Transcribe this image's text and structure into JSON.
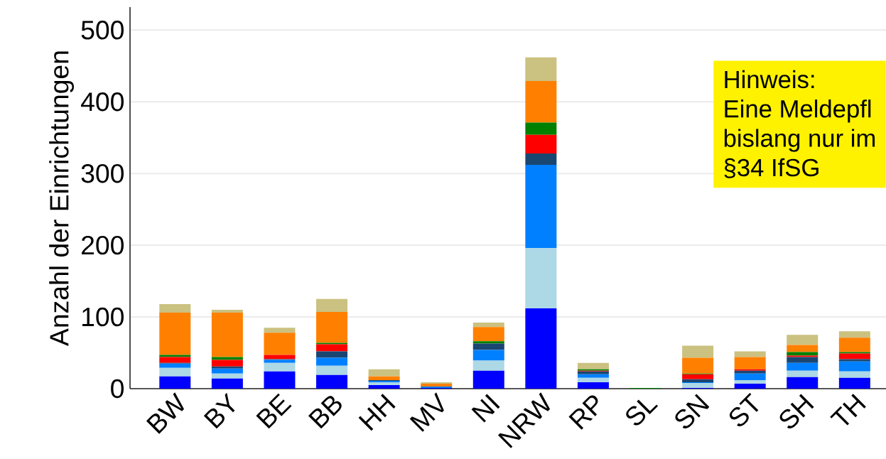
{
  "chart_data": {
    "type": "bar",
    "stacked": true,
    "ylabel": "Anzahl der Einrichtungen",
    "categories": [
      "BW",
      "BY",
      "BE",
      "BB",
      "HH",
      "MV",
      "NI",
      "NRW",
      "RP",
      "SL",
      "SN",
      "ST",
      "SH",
      "TH"
    ],
    "series": [
      {
        "color": "#0000ff",
        "values": [
          17,
          14,
          24,
          19,
          5,
          1,
          25,
          112,
          9,
          0,
          1,
          7,
          16,
          15
        ]
      },
      {
        "color": "#add8e6",
        "values": [
          12,
          7,
          12,
          13,
          4,
          0,
          14,
          84,
          6,
          0,
          7,
          5,
          9,
          9
        ]
      },
      {
        "color": "#0080ff",
        "values": [
          6,
          7,
          4,
          11,
          2,
          2,
          15,
          116,
          5,
          0,
          1,
          9,
          11,
          14
        ]
      },
      {
        "color": "#1a4672",
        "values": [
          1,
          3,
          1,
          9,
          1,
          0,
          9,
          16,
          4,
          0,
          4,
          4,
          8,
          3
        ]
      },
      {
        "color": "#ff0000",
        "values": [
          8,
          9,
          6,
          10,
          0,
          0,
          0,
          26,
          1,
          0,
          7,
          2,
          2,
          8
        ]
      },
      {
        "color": "#008000",
        "values": [
          3,
          4,
          0,
          2,
          0,
          0,
          3,
          17,
          2,
          1,
          1,
          0,
          5,
          2
        ]
      },
      {
        "color": "#ff8000",
        "values": [
          59,
          62,
          31,
          43,
          5,
          4,
          20,
          58,
          0,
          0,
          22,
          17,
          10,
          20
        ]
      },
      {
        "color": "#cbc180",
        "values": [
          12,
          4,
          7,
          18,
          10,
          2,
          6,
          33,
          9,
          0,
          17,
          8,
          14,
          9
        ]
      }
    ],
    "ylim": [
      0,
      532
    ],
    "yticks": [
      0,
      100,
      200,
      300,
      400,
      500
    ],
    "grid": "y",
    "annotations": [
      "Hinweis:",
      "Eine Meldepfl",
      "bislang nur im",
      "§34 IfSG"
    ]
  }
}
